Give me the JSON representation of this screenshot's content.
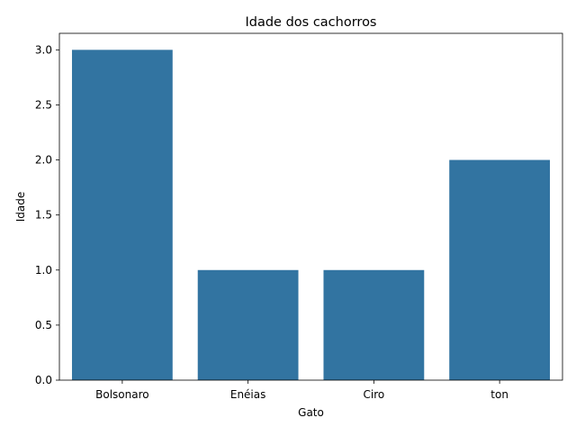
{
  "chart_data": {
    "type": "bar",
    "title": "Idade dos cachorros",
    "xlabel": "Gato",
    "ylabel": "Idade",
    "categories": [
      "Bolsonaro",
      "Enéias",
      "Ciro",
      "ton"
    ],
    "values": [
      3,
      1,
      1,
      2
    ],
    "ylim": [
      0,
      3.15
    ],
    "yticks": [
      "0.0",
      "0.5",
      "1.0",
      "1.5",
      "2.0",
      "2.5",
      "3.0"
    ],
    "bar_color": "#3274a1",
    "grid": false,
    "legend": "none"
  }
}
